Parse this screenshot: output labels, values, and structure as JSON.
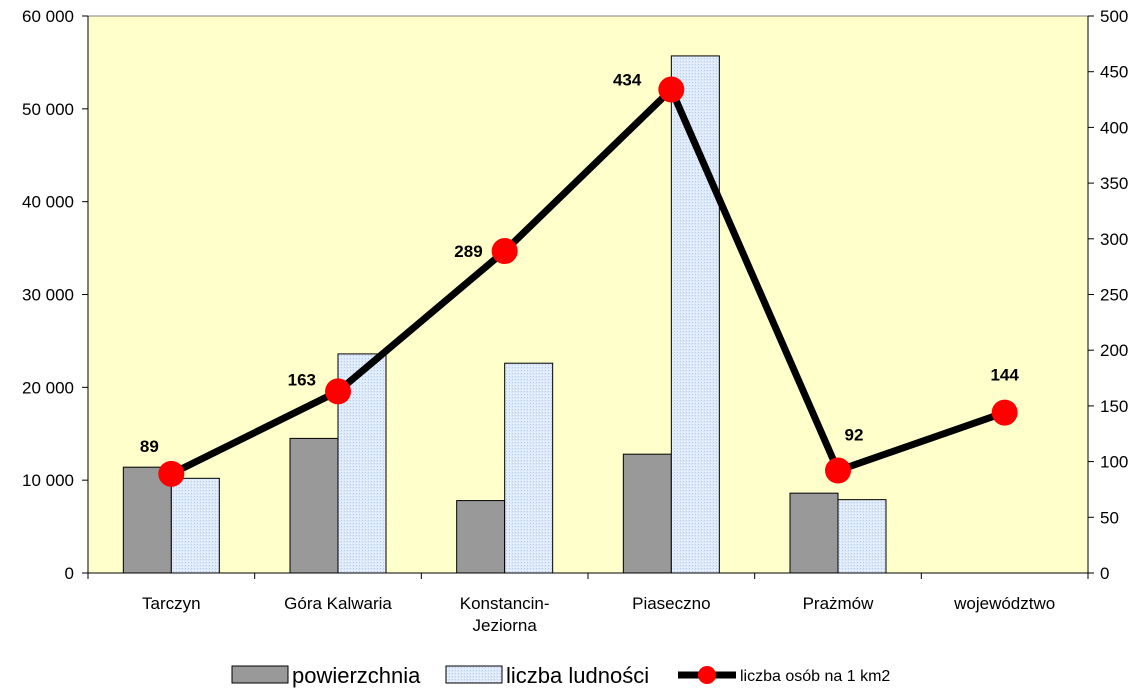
{
  "chart_data": {
    "type": "bar",
    "categories": [
      "Tarczyn",
      "Góra Kalwaria",
      "Konstancin-Jeziorna",
      "Piaseczno",
      "Prażmów",
      "województwo"
    ],
    "category_lines": [
      [
        "Tarczyn"
      ],
      [
        "Góra Kalwaria"
      ],
      [
        "Konstancin-",
        "Jeziorna"
      ],
      [
        "Piaseczno"
      ],
      [
        "Prażmów"
      ],
      [
        "województwo"
      ]
    ],
    "series": [
      {
        "name": "powierzchnia",
        "type": "bar",
        "axis": "left",
        "values": [
          11400,
          14500,
          7800,
          12800,
          8600,
          null
        ]
      },
      {
        "name": "liczba ludności",
        "type": "bar",
        "axis": "left",
        "values": [
          10200,
          23600,
          22600,
          55700,
          7900,
          null
        ]
      },
      {
        "name": "liczba osób na 1 km2",
        "type": "line",
        "axis": "right",
        "values": [
          89,
          163,
          289,
          434,
          92,
          144
        ]
      }
    ],
    "data_labels": [
      "89",
      "163",
      "289",
      "434",
      "92",
      "144"
    ],
    "y_left": {
      "min": 0,
      "max": 60000,
      "step": 10000,
      "tick_labels": [
        "0",
        "10 000",
        "20 000",
        "30 000",
        "40 000",
        "50 000",
        "60 000"
      ]
    },
    "y_right": {
      "min": 0,
      "max": 500,
      "step": 50,
      "tick_labels": [
        "0",
        "50",
        "100",
        "150",
        "200",
        "250",
        "300",
        "350",
        "400",
        "450",
        "500"
      ]
    },
    "legend_position": "bottom",
    "colors": {
      "plot_background": "#ffffcc",
      "bar1": "#999999",
      "bar2": "#dce9fb",
      "line": "#000000",
      "marker": "#ff0000"
    }
  }
}
